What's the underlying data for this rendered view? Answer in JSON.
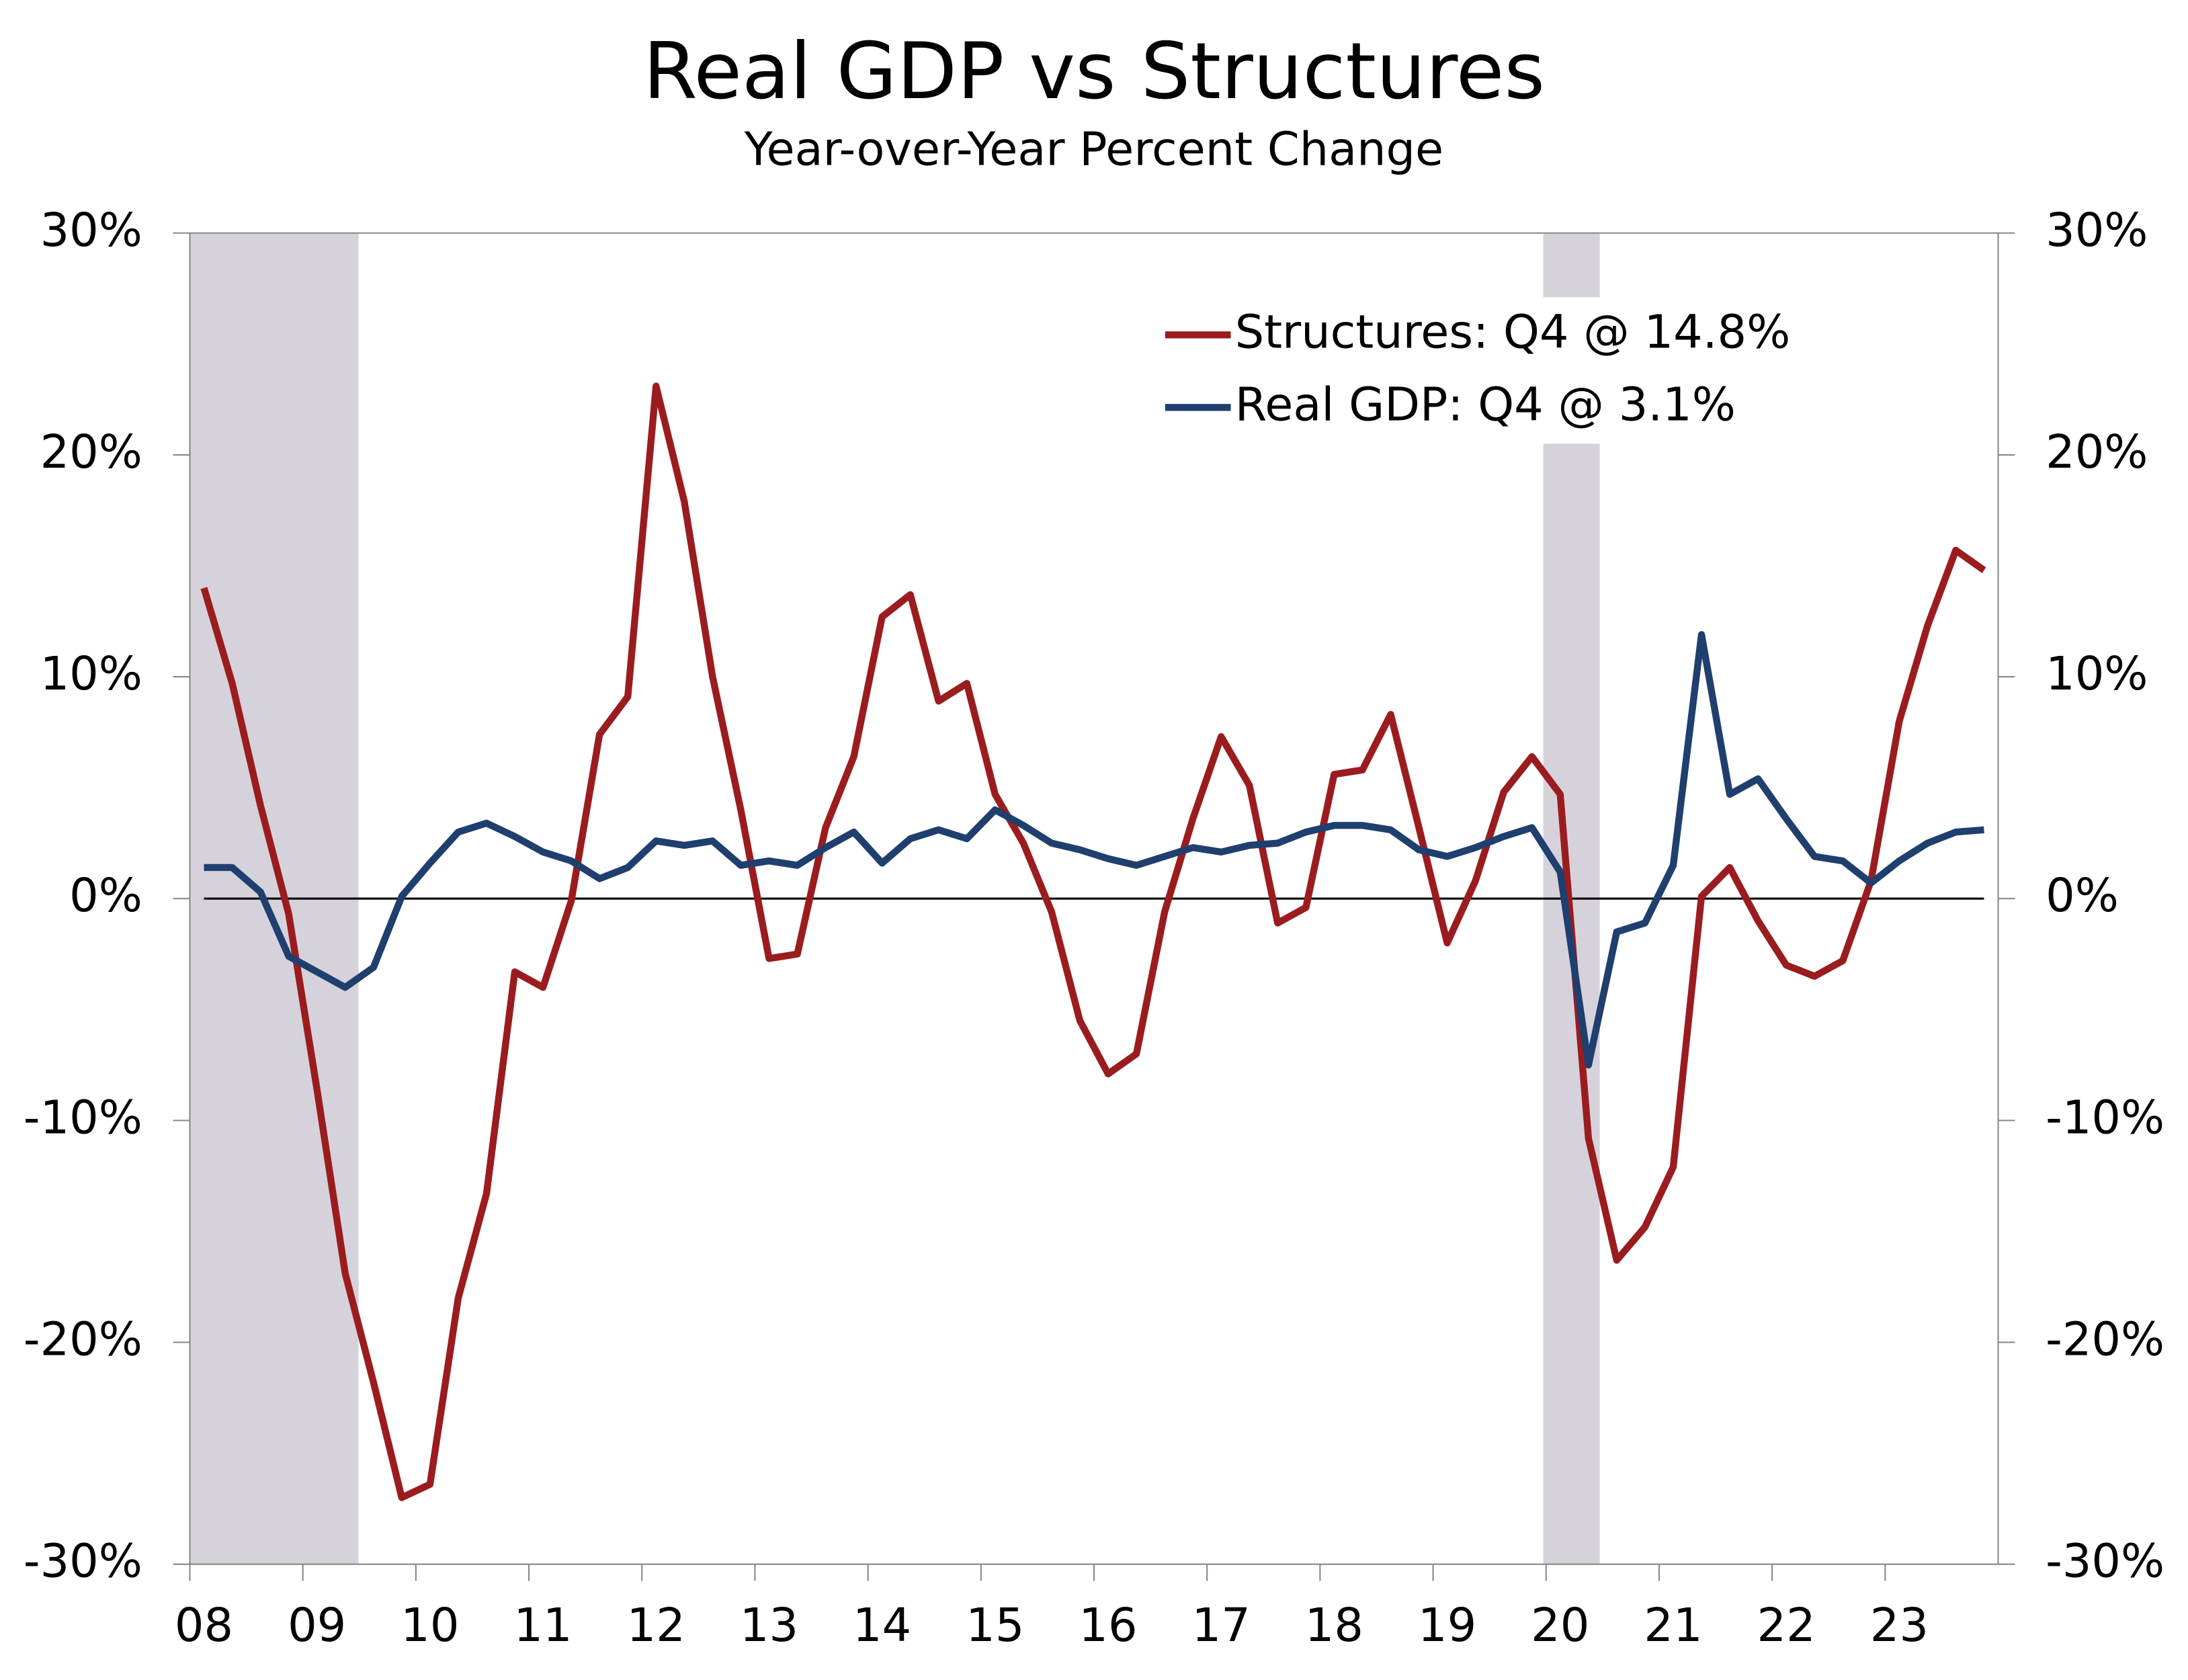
{
  "chart_data": {
    "type": "line",
    "title": "Real GDP vs Structures",
    "subtitle": "Year-over-Year Percent Change",
    "categories": [
      "08",
      null,
      null,
      null,
      "09",
      null,
      null,
      null,
      "10",
      null,
      null,
      null,
      "11",
      null,
      null,
      null,
      "12",
      null,
      null,
      null,
      "13",
      null,
      null,
      null,
      "14",
      null,
      null,
      null,
      "15",
      null,
      null,
      null,
      "16",
      null,
      null,
      null,
      "17",
      null,
      null,
      null,
      "18",
      null,
      null,
      null,
      "19",
      null,
      null,
      null,
      "20",
      null,
      null,
      null,
      "21",
      null,
      null,
      null,
      "22",
      null,
      null,
      null,
      "23",
      null,
      null,
      null
    ],
    "series": [
      {
        "name": "Structures: Q4 @ 14.8%",
        "color": "#9b1c1f",
        "values": [
          14.0,
          9.7,
          4.2,
          -0.7,
          -8.6,
          -16.9,
          -21.8,
          -27.0,
          -26.4,
          -18.0,
          -13.3,
          -3.3,
          -4.0,
          -0.1,
          7.4,
          9.1,
          23.1,
          17.9,
          10.0,
          4.0,
          -2.7,
          -2.5,
          3.2,
          6.4,
          12.7,
          13.7,
          8.9,
          9.7,
          4.7,
          2.5,
          -0.6,
          -5.5,
          -7.9,
          -7.0,
          -0.6,
          3.6,
          7.3,
          5.1,
          -1.1,
          -0.4,
          5.6,
          5.8,
          8.3,
          3.2,
          -2.0,
          0.8,
          4.8,
          6.4,
          4.7,
          -10.8,
          -16.3,
          -14.8,
          -12.1,
          0.1,
          1.4,
          -1.0,
          -3.0,
          -3.5,
          -2.8,
          0.8,
          8.0,
          12.3,
          15.7,
          14.8
        ]
      },
      {
        "name": "Real GDP: Q4 @ 3.1%",
        "color": "#1f3f6e",
        "values": [
          1.4,
          1.4,
          0.3,
          -2.6,
          -3.3,
          -4.0,
          -3.1,
          0.1,
          1.6,
          3.0,
          3.4,
          2.8,
          2.1,
          1.7,
          0.9,
          1.4,
          2.6,
          2.4,
          2.6,
          1.5,
          1.7,
          1.5,
          2.3,
          3.0,
          1.6,
          2.7,
          3.1,
          2.7,
          4.0,
          3.3,
          2.5,
          2.2,
          1.8,
          1.5,
          1.9,
          2.3,
          2.1,
          2.4,
          2.5,
          3.0,
          3.3,
          3.3,
          3.1,
          2.2,
          1.9,
          2.3,
          2.8,
          3.2,
          1.2,
          -7.5,
          -1.5,
          -1.1,
          1.5,
          11.9,
          4.7,
          5.4,
          3.6,
          1.9,
          1.7,
          0.7,
          1.7,
          2.5,
          3.0,
          3.1
        ]
      }
    ],
    "ylim": [
      -30,
      30
    ],
    "yticks": [
      {
        "value": -30,
        "label": "-30%"
      },
      {
        "value": -20,
        "label": "-20%"
      },
      {
        "value": -10,
        "label": "-10%"
      },
      {
        "value": 0,
        "label": "0%"
      },
      {
        "value": 10,
        "label": "10%"
      },
      {
        "value": 20,
        "label": "20%"
      },
      {
        "value": 30,
        "label": "30%"
      }
    ],
    "y2lim": [
      -30,
      30
    ],
    "y2ticks": [
      {
        "value": -30,
        "label": "-30%"
      },
      {
        "value": -20,
        "label": "-20%"
      },
      {
        "value": -10,
        "label": "-10%"
      },
      {
        "value": 0,
        "label": "0%"
      },
      {
        "value": 10,
        "label": "10%"
      },
      {
        "value": 20,
        "label": "20%"
      },
      {
        "value": 30,
        "label": "30%"
      }
    ],
    "shading_color": "#d6d2db",
    "shading": [
      {
        "from": -0.5,
        "to": 5.47
      },
      {
        "from": 47.4,
        "to": 49.4
      }
    ],
    "grid": false,
    "legend": "top-right"
  }
}
